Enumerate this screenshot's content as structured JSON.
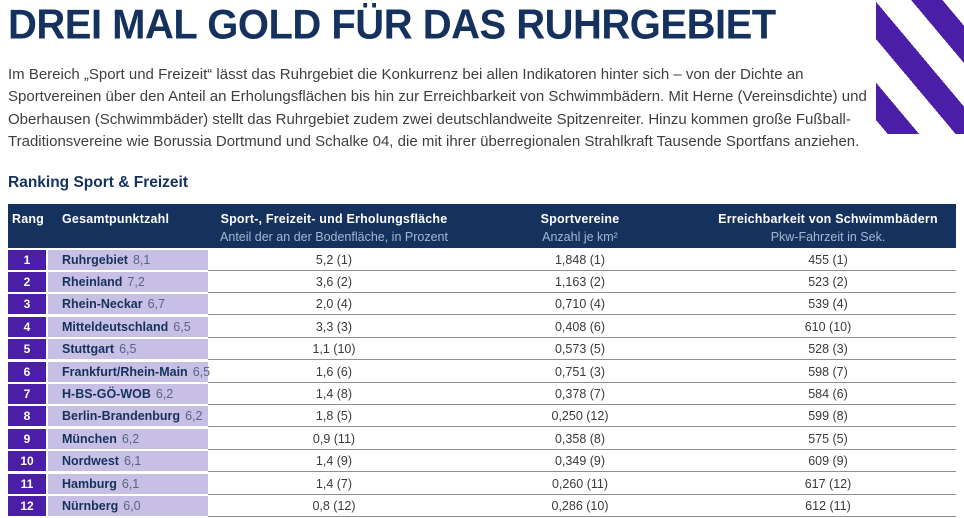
{
  "page": {
    "title": "DREI MAL GOLD FÜR DAS RUHRGEBIET",
    "intro": "Im Bereich „Sport und Freizeit“ lässt das Ruhrgebiet die Konkurrenz bei allen Indikatoren hinter sich – von der Dichte an Sportvereinen über den Anteil an Erholungsflächen bis hin zur Erreichbarkeit von Schwimmbädern. Mit Herne (Vereinsdichte) und Oberhausen (Schwimmbäder) stellt das Ruhrgebiet zudem zwei deutschlandweite Spitzenreiter. Hinzu kommen große Fußball-Traditionsvereine wie Borussia Dortmund und Schalke 04, die mit ihrer überregionalen Strahlkraft Tausende Sportfans anziehen.",
    "section_title": "Ranking Sport & Freizeit"
  },
  "colors": {
    "navy": "#15325f",
    "purple": "#4a1ea7",
    "lavender": "#c8bfe4",
    "score-gray": "#5a6480",
    "header-sub": "#a6b6cf",
    "divider": "#8f8f8f"
  },
  "table": {
    "columns": [
      {
        "label": "Rang",
        "sub": ""
      },
      {
        "label": "Gesamtpunktzahl",
        "sub": ""
      },
      {
        "label": "Sport-, Freizeit- und Erholungsfläche",
        "sub": "Anteil der an der Bodenfläche, in Prozent"
      },
      {
        "label": "Sportvereine",
        "sub": "Anzahl je km²"
      },
      {
        "label": "Erreichbarkeit von Schwimmbädern",
        "sub": "Pkw-Fahrzeit in Sek."
      }
    ],
    "rows": [
      {
        "rank": "1",
        "region": "Ruhrgebiet",
        "score": "8,1",
        "flaeche": "5,2 (1)",
        "vereine": "1,848 (1)",
        "schwimmbaeder": "455 (1)"
      },
      {
        "rank": "2",
        "region": "Rheinland",
        "score": "7,2",
        "flaeche": "3,6 (2)",
        "vereine": "1,163 (2)",
        "schwimmbaeder": "523 (2)"
      },
      {
        "rank": "3",
        "region": "Rhein-Neckar",
        "score": "6,7",
        "flaeche": "2,0 (4)",
        "vereine": "0,710 (4)",
        "schwimmbaeder": "539 (4)"
      },
      {
        "rank": "4",
        "region": "Mitteldeutschland",
        "score": "6,5",
        "flaeche": "3,3 (3)",
        "vereine": "0,408 (6)",
        "schwimmbaeder": "610 (10)"
      },
      {
        "rank": "5",
        "region": "Stuttgart",
        "score": "6,5",
        "flaeche": "1,1 (10)",
        "vereine": "0,573 (5)",
        "schwimmbaeder": "528 (3)"
      },
      {
        "rank": "6",
        "region": "Frankfurt/Rhein-Main",
        "score": "6,5",
        "flaeche": "1,6 (6)",
        "vereine": "0,751 (3)",
        "schwimmbaeder": "598 (7)"
      },
      {
        "rank": "7",
        "region": "H-BS-GÖ-WOB",
        "score": "6,2",
        "flaeche": "1,4 (8)",
        "vereine": "0,378 (7)",
        "schwimmbaeder": "584 (6)"
      },
      {
        "rank": "8",
        "region": "Berlin-Brandenburg",
        "score": "6,2",
        "flaeche": "1,8 (5)",
        "vereine": "0,250 (12)",
        "schwimmbaeder": "599 (8)"
      },
      {
        "rank": "9",
        "region": "München",
        "score": "6,2",
        "flaeche": "0,9 (11)",
        "vereine": "0,358 (8)",
        "schwimmbaeder": "575 (5)"
      },
      {
        "rank": "10",
        "region": "Nordwest",
        "score": "6,1",
        "flaeche": "1,4 (9)",
        "vereine": "0,349 (9)",
        "schwimmbaeder": "609 (9)"
      },
      {
        "rank": "11",
        "region": "Hamburg",
        "score": "6,1",
        "flaeche": "1,4 (7)",
        "vereine": "0,260 (11)",
        "schwimmbaeder": "617 (12)"
      },
      {
        "rank": "12",
        "region": "Nürnberg",
        "score": "6,0",
        "flaeche": "0,8 (12)",
        "vereine": "0,286 (10)",
        "schwimmbaeder": "612 (11)"
      }
    ]
  }
}
